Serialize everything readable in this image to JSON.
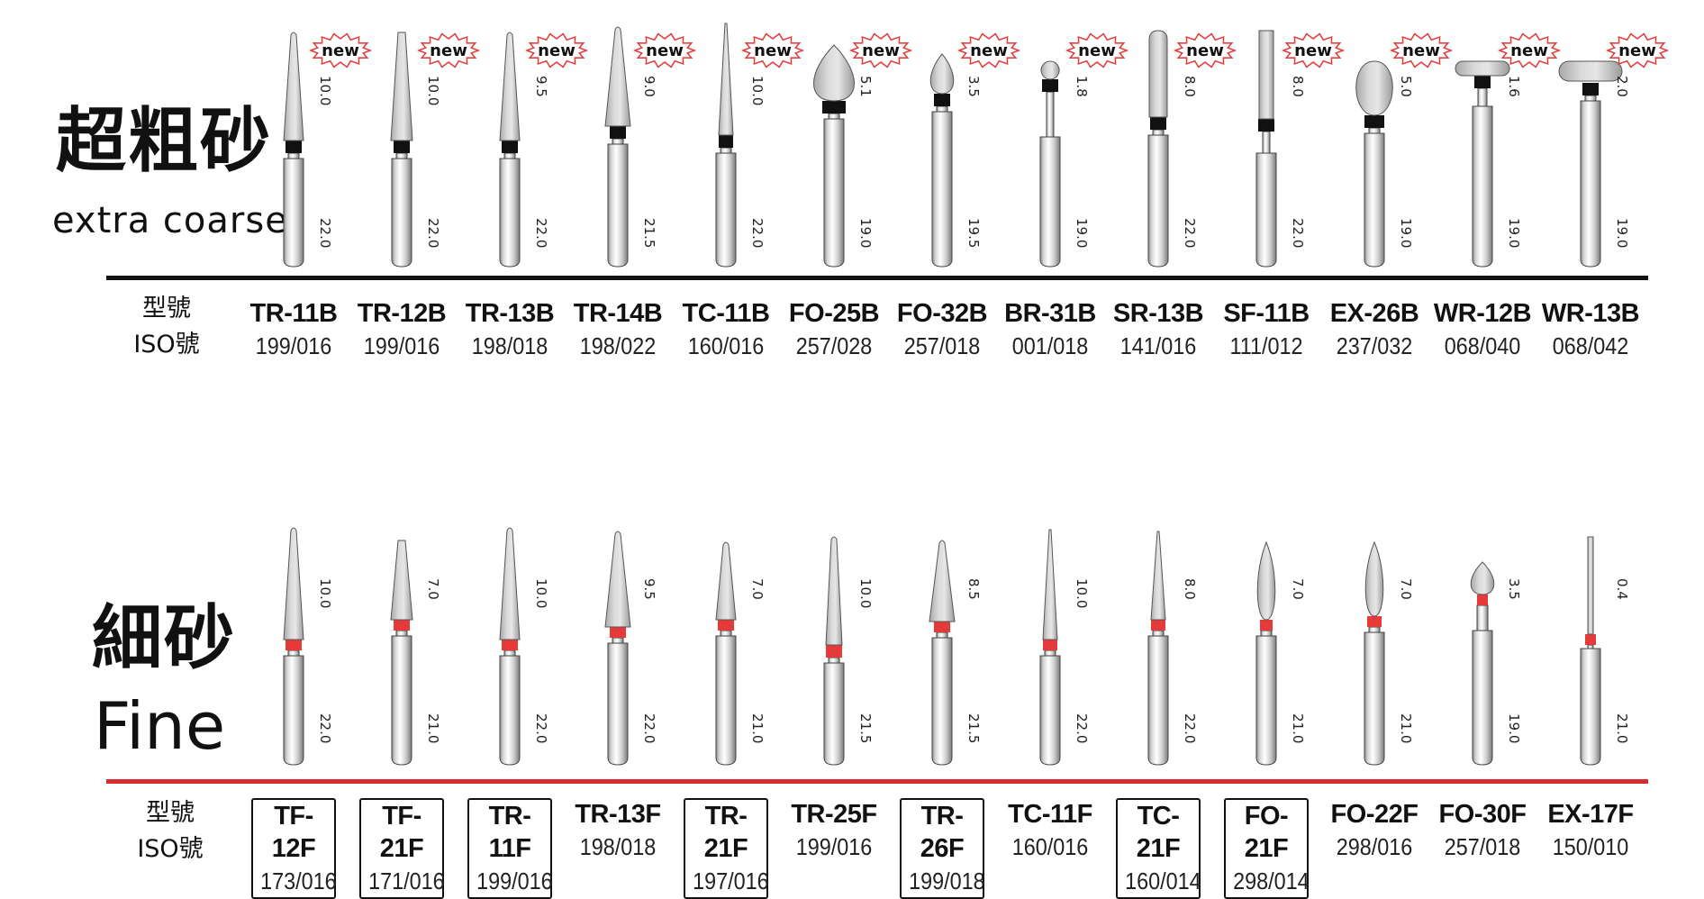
{
  "sections": [
    {
      "title_zh": "超粗砂",
      "title_en": "extra coarse",
      "header_model": "型號",
      "header_iso": "ISO號",
      "band_color": "#111111",
      "rule_color": "#111111",
      "badge_text": "new",
      "items": [
        {
          "model": "TR-11B",
          "iso": "199/016",
          "head_len": "10.0",
          "total_len": "22.0",
          "shape": "taper",
          "new": true
        },
        {
          "model": "TR-12B",
          "iso": "199/016",
          "head_len": "10.0",
          "total_len": "22.0",
          "shape": "taper-flat",
          "new": true
        },
        {
          "model": "TR-13B",
          "iso": "198/018",
          "head_len": "9.5",
          "total_len": "22.0",
          "shape": "taper",
          "new": true
        },
        {
          "model": "TR-14B",
          "iso": "198/022",
          "head_len": "9.0",
          "total_len": "21.5",
          "shape": "taper-wide",
          "new": true
        },
        {
          "model": "TC-11B",
          "iso": "160/016",
          "head_len": "10.0",
          "total_len": "22.0",
          "shape": "needle",
          "new": true
        },
        {
          "model": "FO-25B",
          "iso": "257/028",
          "head_len": "5.1",
          "total_len": "19.0",
          "shape": "flame-large",
          "new": true
        },
        {
          "model": "FO-32B",
          "iso": "257/018",
          "head_len": "3.5",
          "total_len": "19.5",
          "shape": "flame-small",
          "new": true
        },
        {
          "model": "BR-31B",
          "iso": "001/018",
          "head_len": "1.8",
          "total_len": "19.0",
          "shape": "ball",
          "new": true
        },
        {
          "model": "SR-13B",
          "iso": "141/016",
          "head_len": "8.0",
          "total_len": "22.0",
          "shape": "cylinder-round",
          "new": true
        },
        {
          "model": "SF-11B",
          "iso": "111/012",
          "head_len": "8.0",
          "total_len": "22.0",
          "shape": "cylinder-flat",
          "new": true
        },
        {
          "model": "EX-26B",
          "iso": "237/032",
          "head_len": "5.0",
          "total_len": "19.0",
          "shape": "egg",
          "new": true
        },
        {
          "model": "WR-12B",
          "iso": "068/040",
          "head_len": "1.6",
          "total_len": "19.0",
          "shape": "wheel",
          "new": true
        },
        {
          "model": "WR-13B",
          "iso": "068/042",
          "head_len": "2.0",
          "total_len": "19.0",
          "shape": "wheel-large",
          "new": true
        }
      ]
    },
    {
      "title_zh": "細砂",
      "title_en": "Fine",
      "header_model": "型號",
      "header_iso": "ISO號",
      "band_color": "#e53a3a",
      "rule_color": "#d92b2b",
      "items": [
        {
          "model": "TF-12F",
          "iso": "173/016",
          "head_len": "10.0",
          "total_len": "22.0",
          "shape": "taper",
          "boxed": true
        },
        {
          "model": "TF-21F",
          "iso": "171/016",
          "head_len": "7.0",
          "total_len": "21.0",
          "shape": "taper-flat-short",
          "boxed": true
        },
        {
          "model": "TR-11F",
          "iso": "199/016",
          "head_len": "10.0",
          "total_len": "22.0",
          "shape": "taper",
          "boxed": true
        },
        {
          "model": "TR-13F",
          "iso": "198/018",
          "head_len": "9.5",
          "total_len": "22.0",
          "shape": "taper-wide",
          "boxed": false
        },
        {
          "model": "TR-21F",
          "iso": "197/016",
          "head_len": "7.0",
          "total_len": "21.0",
          "shape": "taper-short",
          "boxed": true
        },
        {
          "model": "TR-25F",
          "iso": "199/016",
          "head_len": "10.0",
          "total_len": "21.5",
          "shape": "taper-neck",
          "boxed": false
        },
        {
          "model": "TR-26F",
          "iso": "199/018",
          "head_len": "8.5",
          "total_len": "21.5",
          "shape": "taper-wide-short",
          "boxed": true
        },
        {
          "model": "TC-11F",
          "iso": "160/016",
          "head_len": "10.0",
          "total_len": "22.0",
          "shape": "needle",
          "boxed": false
        },
        {
          "model": "TC-21F",
          "iso": "160/014",
          "head_len": "8.0",
          "total_len": "22.0",
          "shape": "needle-short",
          "boxed": true
        },
        {
          "model": "FO-21F",
          "iso": "298/014",
          "head_len": "7.0",
          "total_len": "21.0",
          "shape": "flame-slim",
          "boxed": true
        },
        {
          "model": "FO-22F",
          "iso": "298/016",
          "head_len": "7.0",
          "total_len": "21.0",
          "shape": "flame-slim2",
          "boxed": false
        },
        {
          "model": "FO-30F",
          "iso": "257/018",
          "head_len": "3.5",
          "total_len": "19.0",
          "shape": "flame-tiny",
          "boxed": false
        },
        {
          "model": "EX-17F",
          "iso": "150/010",
          "head_len": "0.4",
          "total_len": "21.0",
          "shape": "pin",
          "boxed": false
        }
      ]
    }
  ]
}
